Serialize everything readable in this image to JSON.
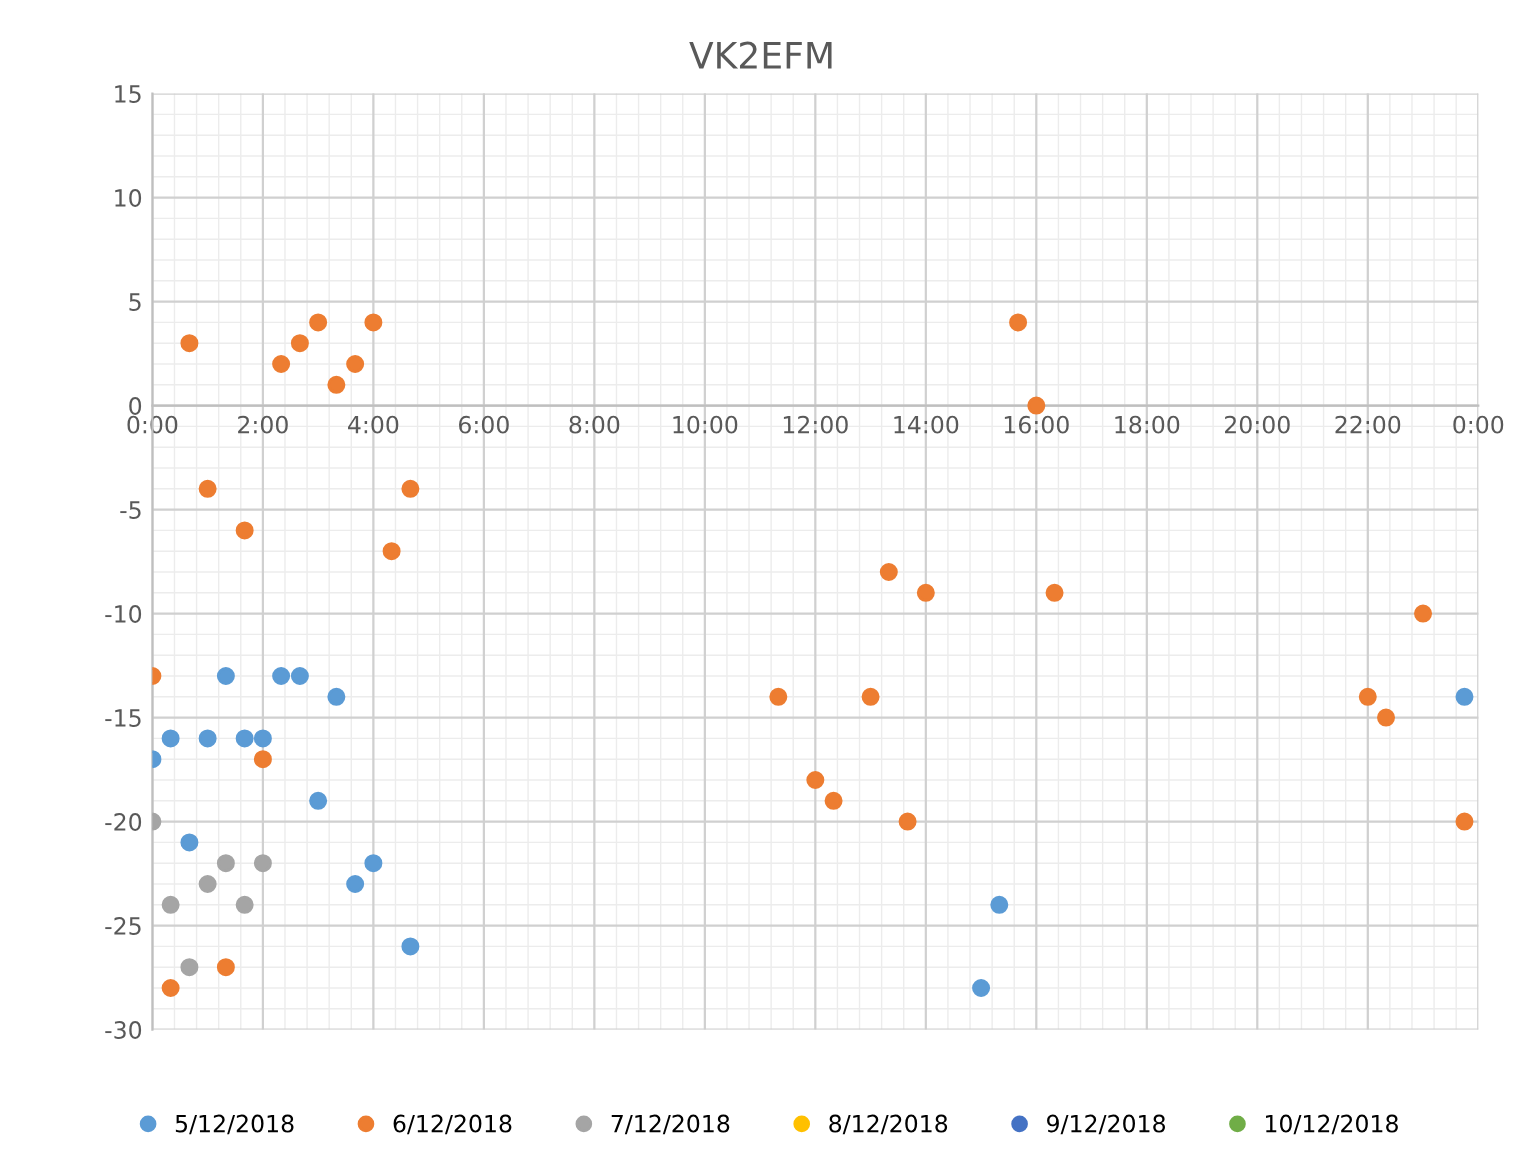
{
  "chart_data": {
    "type": "scatter",
    "title": "VK2EFM",
    "xlim": [
      0,
      24
    ],
    "xticks": [
      {
        "value": 0,
        "label": "0:00"
      },
      {
        "value": 2,
        "label": "2:00"
      },
      {
        "value": 4,
        "label": "4:00"
      },
      {
        "value": 6,
        "label": "6:00"
      },
      {
        "value": 8,
        "label": "8:00"
      },
      {
        "value": 10,
        "label": "10:00"
      },
      {
        "value": 12,
        "label": "12:00"
      },
      {
        "value": 14,
        "label": "14:00"
      },
      {
        "value": 16,
        "label": "16:00"
      },
      {
        "value": 18,
        "label": "18:00"
      },
      {
        "value": 20,
        "label": "20:00"
      },
      {
        "value": 22,
        "label": "22:00"
      },
      {
        "value": 24,
        "label": "0:00"
      }
    ],
    "ylim": [
      -30,
      15
    ],
    "yticks": [
      -30,
      -25,
      -20,
      -15,
      -10,
      -5,
      0,
      5,
      10,
      15
    ],
    "grid": true,
    "legend": "bottom",
    "marker": "circle",
    "series": [
      {
        "name": "5/12/2018",
        "color": "#5b9bd5",
        "x": [
          0,
          0.33,
          0.67,
          1,
          1.33,
          1.67,
          2,
          2.33,
          2.67,
          3,
          3.33,
          3.67,
          4,
          4.67,
          15,
          15.33,
          23.75
        ],
        "values": [
          -17,
          -16,
          -21,
          -16,
          -13,
          -16,
          -16,
          -13,
          -13,
          -19,
          -14,
          -23,
          -22,
          -26,
          -28,
          -24,
          -14
        ]
      },
      {
        "name": "6/12/2018",
        "color": "#ed7d31",
        "x": [
          0,
          0.33,
          0.67,
          1,
          1.33,
          1.67,
          2,
          2.33,
          2.67,
          3,
          3.33,
          3.67,
          4,
          4.33,
          4.67,
          11.33,
          12,
          12.33,
          13,
          13.33,
          13.67,
          14,
          15.67,
          16,
          16.33,
          22,
          22.33,
          23,
          23.75
        ],
        "values": [
          -13,
          -28,
          3,
          -4,
          -27,
          -6,
          -17,
          2,
          3,
          4,
          1,
          2,
          4,
          -7,
          -4,
          -14,
          -18,
          -19,
          -14,
          -8,
          -20,
          -9,
          4,
          0,
          -9,
          -14,
          -15,
          -10,
          -20
        ]
      },
      {
        "name": "7/12/2018",
        "color": "#a5a5a5",
        "x": [
          0,
          0.33,
          0.67,
          1,
          1.33,
          1.67,
          2
        ],
        "values": [
          -20,
          -24,
          -27,
          -23,
          -22,
          -24,
          -22
        ]
      },
      {
        "name": "8/12/2018",
        "color": "#ffc000"
      },
      {
        "name": "9/12/2018",
        "color": "#4472c4"
      },
      {
        "name": "10/12/2018",
        "color": "#70ad47"
      }
    ]
  }
}
